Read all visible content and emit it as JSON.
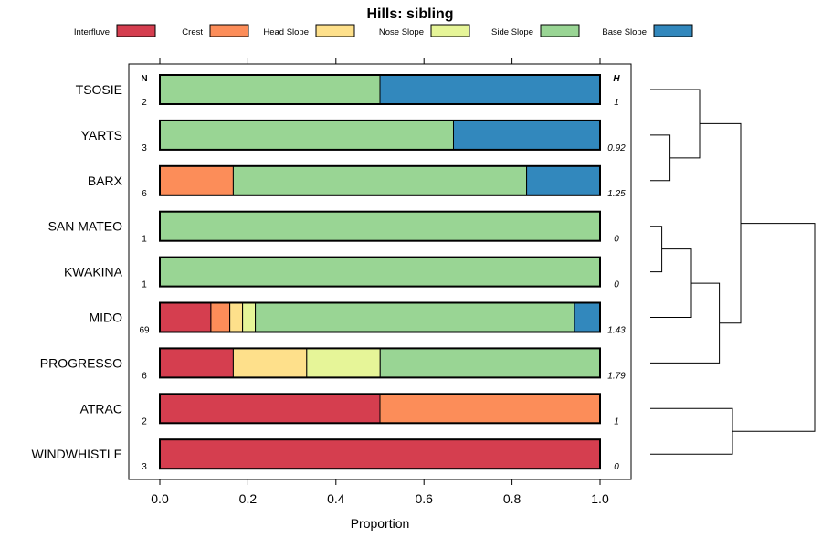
{
  "chart_data": {
    "type": "bar",
    "subtype": "stacked-horizontal-proportion-with-dendrogram",
    "title": "Hills: sibling",
    "xlabel": "Proportion",
    "ylabel": "",
    "xlim": [
      0,
      1
    ],
    "x_ticks": [
      0.0,
      0.2,
      0.4,
      0.6,
      0.8,
      1.0
    ],
    "x_tick_labels": [
      "0.0",
      "0.2",
      "0.4",
      "0.6",
      "0.8",
      "1.0"
    ],
    "n_header": "N",
    "h_header": "H",
    "legend": [
      {
        "name": "Interfluve",
        "color": "#d53e4f"
      },
      {
        "name": "Crest",
        "color": "#fc8d59"
      },
      {
        "name": "Head Slope",
        "color": "#fee08b"
      },
      {
        "name": "Nose Slope",
        "color": "#e6f598"
      },
      {
        "name": "Side Slope",
        "color": "#99d594"
      },
      {
        "name": "Base Slope",
        "color": "#3288bd"
      }
    ],
    "categories": [
      "TSOSIE",
      "YARTS",
      "BARX",
      "SAN MATEO",
      "KWAKINA",
      "MIDO",
      "PROGRESSO",
      "ATRAC",
      "WINDWHISTLE"
    ],
    "n": [
      "2",
      "3",
      "6",
      "1",
      "1",
      "69",
      "6",
      "2",
      "3"
    ],
    "h": [
      "1",
      "0.92",
      "1.25",
      "0",
      "0",
      "1.43",
      "1.79",
      "1",
      "0"
    ],
    "series": [
      {
        "name": "Interfluve",
        "values": [
          0,
          0,
          0,
          0,
          0,
          0.116,
          0.167,
          0.5,
          1.0
        ]
      },
      {
        "name": "Crest",
        "values": [
          0,
          0,
          0.167,
          0,
          0,
          0.043,
          0,
          0.5,
          0
        ]
      },
      {
        "name": "Head Slope",
        "values": [
          0,
          0,
          0,
          0,
          0,
          0.029,
          0.167,
          0,
          0
        ]
      },
      {
        "name": "Nose Slope",
        "values": [
          0,
          0,
          0,
          0,
          0,
          0.029,
          0.167,
          0,
          0
        ]
      },
      {
        "name": "Side Slope",
        "values": [
          0.5,
          0.667,
          0.667,
          1.0,
          1.0,
          0.725,
          0.5,
          0,
          0
        ]
      },
      {
        "name": "Base Slope",
        "values": [
          0.5,
          0.333,
          0.167,
          0,
          0,
          0.058,
          0,
          0,
          0
        ]
      }
    ],
    "dendrogram": {
      "merges": [
        {
          "left": 1,
          "right": 2,
          "height": 0.12
        },
        {
          "left": 0,
          "right": "m0",
          "height": 0.3
        },
        {
          "left": 3,
          "right": 4,
          "height": 0.07
        },
        {
          "left": "m2",
          "right": 5,
          "height": 0.25
        },
        {
          "left": "m3",
          "right": 6,
          "height": 0.42
        },
        {
          "left": "m1",
          "right": "m4",
          "height": 0.55
        },
        {
          "left": 7,
          "right": 8,
          "height": 0.5
        },
        {
          "left": "m5",
          "right": "m6",
          "height": 1.0
        }
      ]
    }
  }
}
